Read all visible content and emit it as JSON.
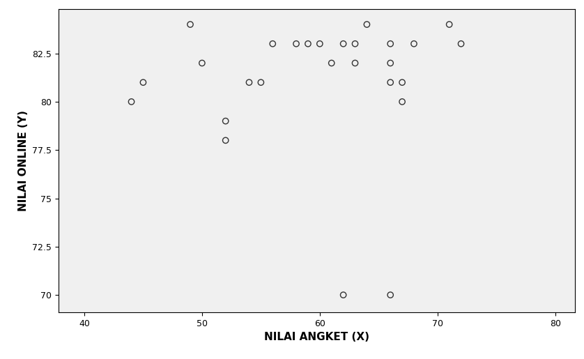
{
  "chart_data": {
    "type": "scatter",
    "x_label": "NILAI ANGKET (X)",
    "y_label": "NILAI ONLINE (Y)",
    "x": [
      49,
      44,
      45,
      50,
      52,
      52,
      54,
      55,
      56,
      58,
      59,
      60,
      61,
      62,
      63,
      63,
      64,
      66,
      66,
      66,
      67,
      67,
      68,
      71,
      72,
      62,
      66
    ],
    "values": [
      84,
      80,
      81,
      82,
      79,
      78,
      81,
      81,
      83,
      83,
      83,
      83,
      82,
      83,
      83,
      82,
      84,
      83,
      82,
      81,
      81,
      80,
      83,
      84,
      83,
      70,
      70
    ],
    "color": "#333333",
    "marker": "circle",
    "xlim": [
      37.8,
      81.7
    ],
    "xticks": [
      40,
      50,
      60,
      70,
      80
    ],
    "ylim": [
      69.1,
      84.8
    ],
    "yticks": [
      70,
      72.5,
      75,
      77.5,
      80,
      82.5
    ],
    "grid": false
  }
}
